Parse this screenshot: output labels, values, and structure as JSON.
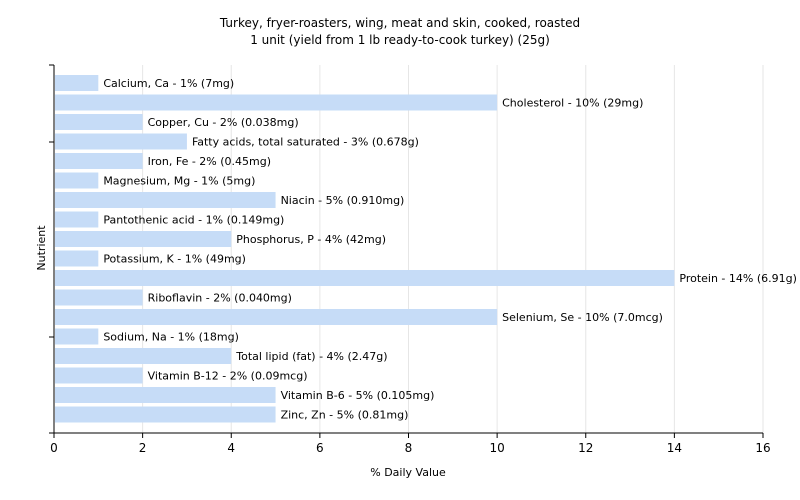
{
  "chart_data": {
    "type": "bar",
    "orientation": "horizontal",
    "title": "Turkey, fryer-roasters, wing, meat and skin, cooked, roasted",
    "subtitle": "1 unit (yield from 1 lb ready-to-cook turkey) (25g)",
    "xlabel": "% Daily Value",
    "ylabel": "Nutrient",
    "xlim": [
      0,
      16
    ],
    "xticks": [
      0,
      2,
      4,
      6,
      8,
      10,
      12,
      14,
      16
    ],
    "grid": true,
    "bar_color": "#c6dcf7",
    "categories": [
      "Calcium, Ca",
      "Cholesterol",
      "Copper, Cu",
      "Fatty acids, total saturated",
      "Iron, Fe",
      "Magnesium, Mg",
      "Niacin",
      "Pantothenic acid",
      "Phosphorus, P",
      "Potassium, K",
      "Protein",
      "Riboflavin",
      "Selenium, Se",
      "Sodium, Na",
      "Total lipid (fat)",
      "Vitamin B-12",
      "Vitamin B-6",
      "Zinc, Zn"
    ],
    "values": [
      1,
      10,
      2,
      3,
      2,
      1,
      5,
      1,
      4,
      1,
      14,
      2,
      10,
      1,
      4,
      2,
      5,
      5
    ],
    "labels": [
      "Calcium, Ca - 1% (7mg)",
      "Cholesterol - 10% (29mg)",
      "Copper, Cu - 2% (0.038mg)",
      "Fatty acids, total saturated - 3% (0.678g)",
      "Iron, Fe - 2% (0.45mg)",
      "Magnesium, Mg - 1% (5mg)",
      "Niacin - 5% (0.910mg)",
      "Pantothenic acid - 1% (0.149mg)",
      "Phosphorus, P - 4% (42mg)",
      "Potassium, K - 1% (49mg)",
      "Protein - 14% (6.91g)",
      "Riboflavin - 2% (0.040mg)",
      "Selenium, Se - 10% (7.0mcg)",
      "Sodium, Na - 1% (18mg)",
      "Total lipid (fat) - 4% (2.47g)",
      "Vitamin B-12 - 2% (0.09mcg)",
      "Vitamin B-6 - 5% (0.105mg)",
      "Zinc, Zn - 5% (0.81mg)"
    ]
  }
}
